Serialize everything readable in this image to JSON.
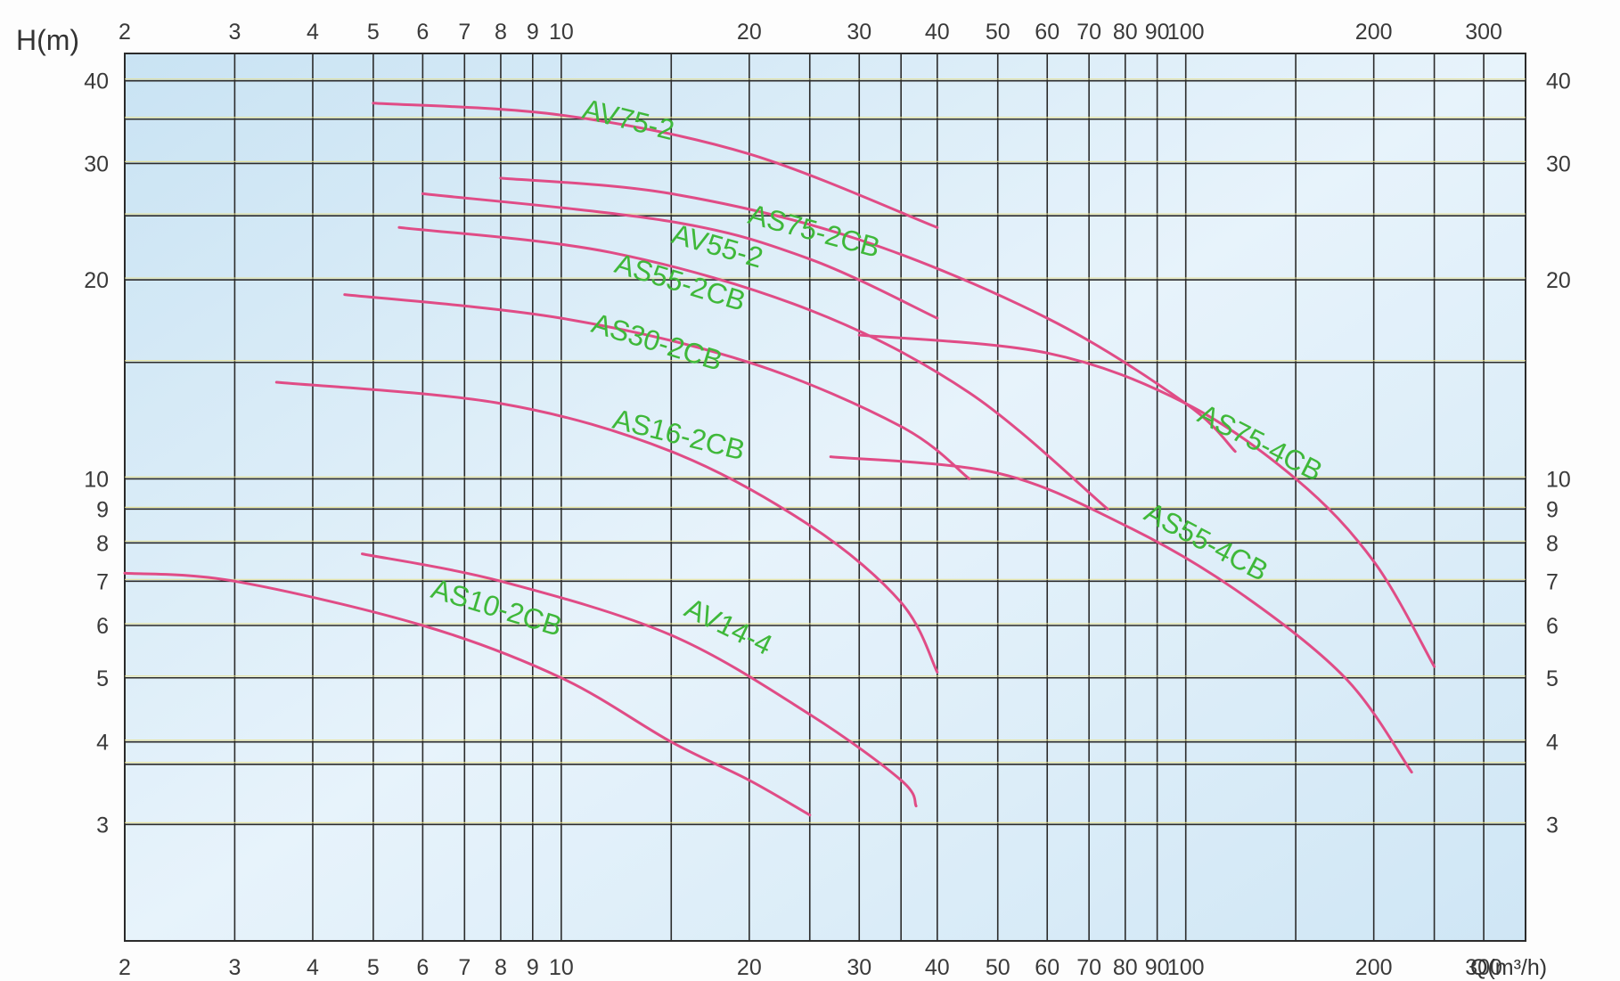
{
  "colors": {
    "plot_background": "#d6eaf6",
    "grid": "#2b2b2b",
    "highlight_line": "#e8e08a",
    "curve": "#e04c86",
    "curve_label": "#3fb83a",
    "text": "#3a3a3a"
  },
  "chart_data": {
    "type": "line",
    "title": "",
    "xlabel": "Q(m³/h)",
    "ylabel": "H(m)",
    "xscale": "log",
    "yscale": "log",
    "xlim": [
      2,
      350
    ],
    "ylim": [
      2,
      44
    ],
    "grid": true,
    "legend": "none",
    "x_ticks": [
      2,
      3,
      4,
      5,
      6,
      7,
      8,
      9,
      10,
      20,
      30,
      40,
      50,
      60,
      70,
      80,
      90,
      100,
      200,
      300
    ],
    "x_tick_labels": [
      "2",
      "3",
      "4",
      "5",
      "6",
      "7",
      "8",
      "9",
      "10",
      "20",
      "30",
      "40",
      "50",
      "60",
      "70",
      "80",
      "90",
      "100",
      "200",
      "300"
    ],
    "y_ticks": [
      3,
      4,
      5,
      6,
      7,
      8,
      9,
      10,
      20,
      30,
      40
    ],
    "y_tick_labels": [
      "3",
      "4",
      "5",
      "6",
      "7",
      "8",
      "9",
      "10",
      "20",
      "30",
      "40"
    ],
    "x_minor_grid": [
      15,
      25,
      35,
      150,
      250
    ],
    "y_minor_grid": [
      3.7,
      15,
      25,
      35
    ],
    "series": [
      {
        "name": "AV75-2",
        "x": [
          5,
          10,
          20,
          40
        ],
        "y": [
          37,
          35.5,
          31,
          24
        ]
      },
      {
        "name": "AS75-2CB",
        "x": [
          8,
          15,
          30,
          60,
          100,
          120
        ],
        "y": [
          28.5,
          27,
          23,
          17.5,
          13,
          11
        ]
      },
      {
        "name": "AV55-2",
        "x": [
          6,
          15,
          25,
          40
        ],
        "y": [
          27,
          24.5,
          21.5,
          17.5
        ]
      },
      {
        "name": "AS55-2CB",
        "x": [
          5.5,
          12,
          25,
          45,
          75
        ],
        "y": [
          24,
          22,
          18,
          13.5,
          9
        ]
      },
      {
        "name": "AS30-2CB",
        "x": [
          4.5,
          10,
          20,
          35,
          45
        ],
        "y": [
          19,
          17.5,
          15,
          12,
          10
        ]
      },
      {
        "name": "AS16-2CB",
        "x": [
          3.5,
          8,
          15,
          25,
          35,
          40
        ],
        "y": [
          14,
          13,
          11,
          8.5,
          6.5,
          5.1
        ]
      },
      {
        "name": "AS75-4CB",
        "x": [
          30,
          60,
          100,
          150,
          200,
          250
        ],
        "y": [
          16.5,
          15.5,
          13,
          10,
          7.5,
          5.2
        ]
      },
      {
        "name": "AS55-4CB",
        "x": [
          27,
          50,
          80,
          120,
          180,
          230
        ],
        "y": [
          10.8,
          10.2,
          8.5,
          6.8,
          5,
          3.6
        ]
      },
      {
        "name": "AV14-4",
        "x": [
          4.8,
          8,
          15,
          25,
          35,
          37
        ],
        "y": [
          7.7,
          7,
          5.8,
          4.4,
          3.5,
          3.2
        ]
      },
      {
        "name": "AS10-2CB",
        "x": [
          2,
          3,
          6,
          10,
          15,
          20,
          25
        ],
        "y": [
          7.2,
          7,
          6,
          5,
          4,
          3.5,
          3.1
        ]
      }
    ],
    "annotations": [
      {
        "text": "AV75-2",
        "series": "AV75-2"
      },
      {
        "text": "AS75-2CB",
        "series": "AS75-2CB"
      },
      {
        "text": "AV55-2",
        "series": "AV55-2"
      },
      {
        "text": "AS55-2CB",
        "series": "AS55-2CB"
      },
      {
        "text": "AS30-2CB",
        "series": "AS30-2CB"
      },
      {
        "text": "AS16-2CB",
        "series": "AS16-2CB"
      },
      {
        "text": "AS75-4CB",
        "series": "AS75-4CB"
      },
      {
        "text": "AS55-4CB",
        "series": "AS55-4CB"
      },
      {
        "text": "AV14-4",
        "series": "AV14-4"
      },
      {
        "text": "AS10-2CB",
        "series": "AS10-2CB"
      }
    ]
  }
}
